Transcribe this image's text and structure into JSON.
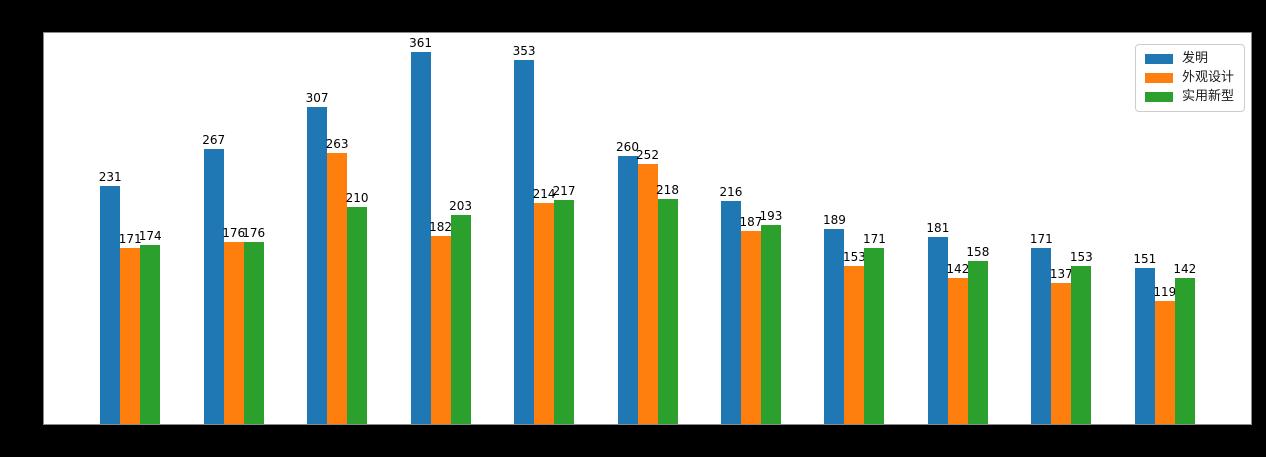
{
  "figure": {
    "background_color": "#000000",
    "plot_background_color": "#ffffff",
    "plot_border_color": "#8a8a8a",
    "label_text_color": "#000000"
  },
  "legend": {
    "position": "top-right",
    "background_color": "#ffffff",
    "border_color": "#cccccc",
    "items": [
      {
        "label": "发明",
        "color": "#1f77b4"
      },
      {
        "label": "外观设计",
        "color": "#ff7f0e"
      },
      {
        "label": "实用新型",
        "color": "#2ca02c"
      }
    ]
  },
  "chart_data": {
    "type": "bar",
    "title": "",
    "xlabel": "",
    "ylabel": "",
    "group_count": 11,
    "x_tick_labels_visible": false,
    "ylim": [
      0,
      379
    ],
    "grid": false,
    "data_labels_shown": true,
    "legend_position": "upper right",
    "series": [
      {
        "name": "发明",
        "color": "#1f77b4",
        "values": [
          231,
          267,
          307,
          361,
          353,
          260,
          216,
          189,
          181,
          171,
          151
        ]
      },
      {
        "name": "外观设计",
        "color": "#ff7f0e",
        "values": [
          171,
          176,
          263,
          182,
          214,
          252,
          187,
          153,
          142,
          137,
          119
        ]
      },
      {
        "name": "实用新型",
        "color": "#2ca02c",
        "values": [
          174,
          176,
          210,
          203,
          217,
          218,
          193,
          171,
          158,
          153,
          142
        ]
      }
    ]
  }
}
